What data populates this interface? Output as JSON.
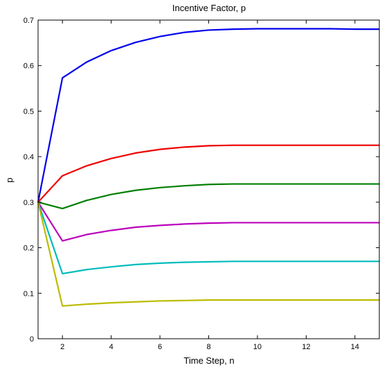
{
  "chart_data": {
    "type": "line",
    "title": "Incentive Factor, p",
    "xlabel": "Time Step, n",
    "ylabel": "p",
    "xlim": [
      1,
      15
    ],
    "ylim": [
      0,
      0.7
    ],
    "xticks": [
      2,
      4,
      6,
      8,
      10,
      12,
      14
    ],
    "yticks": [
      0,
      0.1,
      0.2,
      0.3,
      0.4,
      0.5,
      0.6,
      0.7
    ],
    "grid": false,
    "x": [
      1,
      2,
      3,
      4,
      5,
      6,
      7,
      8,
      9,
      10,
      11,
      12,
      13,
      14,
      15
    ],
    "series": [
      {
        "color": "#0000ee",
        "values": [
          0.3,
          0.573,
          0.608,
          0.633,
          0.651,
          0.664,
          0.673,
          0.678,
          0.68,
          0.681,
          0.681,
          0.681,
          0.681,
          0.68,
          0.68
        ]
      },
      {
        "color": "#ee0000",
        "values": [
          0.3,
          0.358,
          0.38,
          0.396,
          0.408,
          0.416,
          0.421,
          0.424,
          0.425,
          0.425,
          0.425,
          0.425,
          0.425,
          0.425,
          0.425
        ]
      },
      {
        "color": "#007f00",
        "values": [
          0.3,
          0.286,
          0.304,
          0.317,
          0.326,
          0.332,
          0.336,
          0.339,
          0.34,
          0.34,
          0.34,
          0.34,
          0.34,
          0.34,
          0.34
        ]
      },
      {
        "color": "#bb00bb",
        "values": [
          0.3,
          0.215,
          0.229,
          0.238,
          0.245,
          0.249,
          0.252,
          0.254,
          0.255,
          0.255,
          0.255,
          0.255,
          0.255,
          0.255,
          0.255
        ]
      },
      {
        "color": "#00bbbb",
        "values": [
          0.3,
          0.143,
          0.152,
          0.158,
          0.163,
          0.166,
          0.168,
          0.169,
          0.17,
          0.17,
          0.17,
          0.17,
          0.17,
          0.17,
          0.17
        ]
      },
      {
        "color": "#bbbb00",
        "values": [
          0.3,
          0.072,
          0.076,
          0.079,
          0.081,
          0.083,
          0.084,
          0.085,
          0.085,
          0.085,
          0.085,
          0.085,
          0.085,
          0.085,
          0.085
        ]
      }
    ]
  }
}
